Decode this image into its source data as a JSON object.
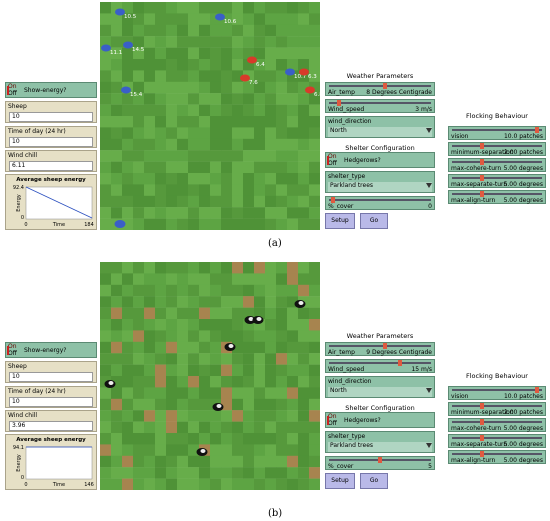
{
  "panels": [
    {
      "caption": "(a)",
      "show_energy": {
        "on": "On",
        "off": "Off",
        "label": "Show-energy?"
      },
      "monitors": [
        {
          "label": "Sheep",
          "value": "10"
        },
        {
          "label": "Time of day (24 hr)",
          "value": "10"
        },
        {
          "label": "Wind chill",
          "value": "6.11"
        }
      ],
      "plot": {
        "title": "Average sheep energy",
        "xlabel": "Time",
        "ylabel": "Energy",
        "xlim": [
          0,
          184
        ],
        "ylim": [
          0,
          92.4
        ],
        "x": [
          0,
          184
        ],
        "y": [
          92.4,
          3
        ]
      },
      "agent_labels": [
        "10.5",
        "10.6",
        "14.5",
        "11.1",
        "15.4",
        "6.4",
        "7.6",
        "10.7",
        "6.3",
        "6.8"
      ],
      "weather": {
        "title": "Weather Parameters",
        "sliders": [
          {
            "label": "Air_temp",
            "value": "8",
            "unit": "Degrees Centigrade"
          },
          {
            "label": "Wind_speed",
            "value": "3",
            "unit": "m/s"
          }
        ],
        "chooser": {
          "label": "wind_direction",
          "value": "North"
        }
      },
      "shelter": {
        "title": "Shelter Configuration",
        "switch": {
          "on": "On",
          "off": "Off",
          "label": "Hedgerows?"
        },
        "chooser": {
          "label": "shelter_type",
          "value": "Parkland trees"
        },
        "slider": {
          "label": "%_cover",
          "value": "0"
        }
      },
      "buttons": [
        "Setup",
        "Go"
      ],
      "flocking": {
        "title": "Flocking Behaviour",
        "sliders": [
          {
            "label": "vision",
            "value": "10.0",
            "unit": "patches"
          },
          {
            "label": "minimum-separation",
            "value": "2.00",
            "unit": "patches"
          },
          {
            "label": "max-cohere-turn",
            "value": "5.00",
            "unit": "degrees"
          },
          {
            "label": "max-separate-turn",
            "value": "5.00",
            "unit": "degrees"
          },
          {
            "label": "max-align-turn",
            "value": "5.00",
            "unit": "degrees"
          }
        ]
      }
    },
    {
      "caption": "(b)",
      "show_energy": {
        "on": "On",
        "off": "Off",
        "label": "Show-energy?"
      },
      "monitors": [
        {
          "label": "Sheep",
          "value": "10"
        },
        {
          "label": "Time of day (24 hr)",
          "value": "10"
        },
        {
          "label": "Wind chill",
          "value": "3.96"
        }
      ],
      "plot": {
        "title": "Average sheep energy",
        "xlabel": "Time",
        "ylabel": "Energy",
        "xlim": [
          0,
          146
        ],
        "ylim": [
          0,
          94.1
        ],
        "x": [
          0,
          146
        ],
        "y": [
          94.1,
          94.1
        ]
      },
      "weather": {
        "title": "Weather Parameters",
        "sliders": [
          {
            "label": "Air_temp",
            "value": "9",
            "unit": "Degrees Centigrade"
          },
          {
            "label": "Wind_speed",
            "value": "15",
            "unit": "m/s"
          }
        ],
        "chooser": {
          "label": "wind_direction",
          "value": "North"
        }
      },
      "shelter": {
        "title": "Shelter Configuration",
        "switch": {
          "on": "On",
          "off": "Off",
          "label": "Hedgerows?"
        },
        "chooser": {
          "label": "shelter_type",
          "value": "Parkland trees"
        },
        "slider": {
          "label": "%_cover",
          "value": "5"
        }
      },
      "buttons": [
        "Setup",
        "Go"
      ],
      "flocking": {
        "title": "Flocking Behaviour",
        "sliders": [
          {
            "label": "vision",
            "value": "10.0",
            "unit": "patches"
          },
          {
            "label": "minimum-separation",
            "value": "2.00",
            "unit": "patches"
          },
          {
            "label": "max-cohere-turn",
            "value": "5.00",
            "unit": "degrees"
          },
          {
            "label": "max-separate-turn",
            "value": "5.00",
            "unit": "degrees"
          },
          {
            "label": "max-align-turn",
            "value": "5.00",
            "unit": "degrees"
          }
        ]
      }
    }
  ]
}
